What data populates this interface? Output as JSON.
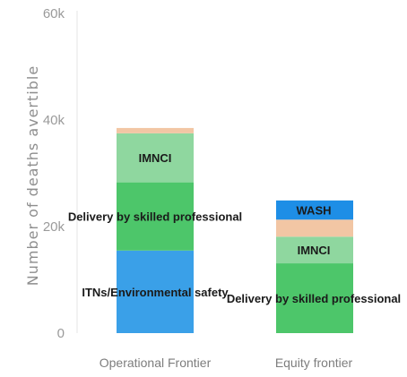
{
  "chart_data": {
    "type": "bar",
    "stacked": true,
    "categories": [
      "Operational Frontier",
      "Equity frontier"
    ],
    "ylabel": "Number of deaths avertible",
    "ylim": [
      0,
      60000
    ],
    "yticks": [
      {
        "value": 0,
        "label": "0"
      },
      {
        "value": 20000,
        "label": "20k"
      },
      {
        "value": 40000,
        "label": "40k"
      },
      {
        "value": 60000,
        "label": "60k"
      }
    ],
    "grid": false,
    "series": [
      {
        "key": "itns",
        "label": "ITNs/Environmental safety",
        "color": "#3aa0e8",
        "values": [
          15500,
          0
        ]
      },
      {
        "key": "delivery",
        "label": "Delivery by skilled professional",
        "color": "#4dc66a",
        "values": [
          12800,
          13100
        ]
      },
      {
        "key": "imnci",
        "label": "IMNCI",
        "color": "#8fd79f",
        "values": [
          9200,
          5000
        ]
      },
      {
        "key": "peach",
        "label": "",
        "color": "#f2c6a4",
        "values": [
          1000,
          3200
        ]
      },
      {
        "key": "wash",
        "label": "WASH",
        "color": "#1e8ee6",
        "values": [
          0,
          3600
        ]
      }
    ],
    "segment_labels": [
      {
        "bar": 0,
        "series": "itns",
        "text": "ITNs/Environmental safety"
      },
      {
        "bar": 0,
        "series": "delivery",
        "text": "Delivery by skilled professional"
      },
      {
        "bar": 0,
        "series": "imnci",
        "text": "IMNCI"
      },
      {
        "bar": 1,
        "series": "delivery",
        "text": "Delivery by skilled professional"
      },
      {
        "bar": 1,
        "series": "imnci",
        "text": "IMNCI"
      },
      {
        "bar": 1,
        "series": "wash",
        "text": "WASH"
      }
    ]
  }
}
